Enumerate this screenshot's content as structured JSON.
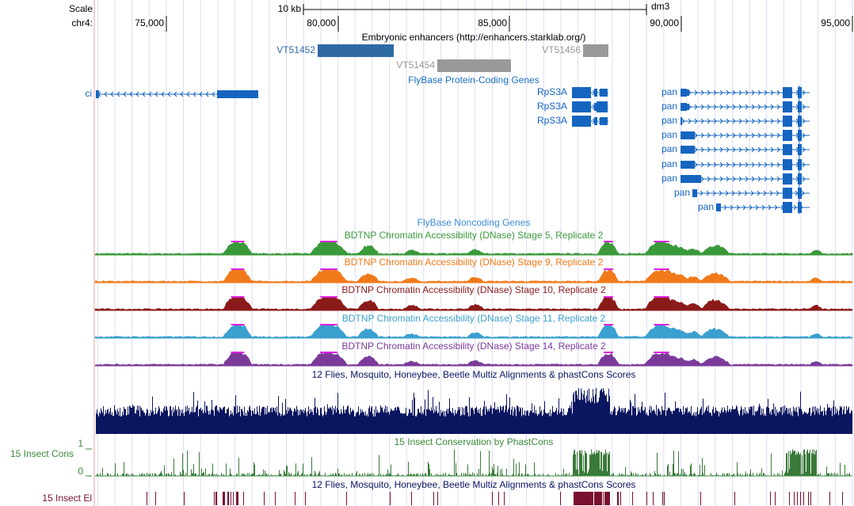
{
  "ruler": {
    "scale_label": "Scale",
    "chrom_label": "chr4:",
    "scale_bar_label": "10 kb",
    "assembly": "dm3",
    "ticks": [
      "75,000",
      "80,000",
      "85,000",
      "90,000",
      "95,000"
    ]
  },
  "enhancers": {
    "title": "Embryonic enhancers (http://enhancers.starklab.org/)",
    "features": [
      "VT51452",
      "VT51454",
      "VT51456"
    ]
  },
  "protein_coding": {
    "title": "FlyBase Protein-Coding Genes",
    "genes": [
      "ci",
      "RpS3A",
      "RpS3A",
      "RpS3A",
      "pan",
      "pan",
      "pan",
      "pan",
      "pan",
      "pan",
      "pan",
      "pan",
      "pan"
    ]
  },
  "noncoding": {
    "title": "FlyBase Noncoding Genes"
  },
  "dnase": [
    "BDTNP Chromatin Accessibility (DNase) Stage 5, Replicate 2",
    "BDTNP Chromatin Accessibility (DNase) Stage 9, Replicate 2",
    "BDTNP Chromatin Accessibility (DNase) Stage 10, Replicate 2",
    "BDTNP Chromatin Accessibility (DNase) Stage 11, Replicate 2",
    "BDTNP Chromatin Accessibility (DNase) Stage 14, Replicate 2"
  ],
  "multiz": {
    "title": "12 Flies, Mosquito, Honeybee, Beetle Multiz Alignments & phastCons Scores"
  },
  "phastcons": {
    "title": "15 Insect Conservation by PhastCons",
    "side_label": "15 Insect Cons",
    "axis_top": "1",
    "axis_bottom": "0"
  },
  "elements": {
    "title": "12 Flies, Mosquito, Honeybee, Beetle Multiz Alignments & phastCons Scores",
    "side_label": "15 Insect El"
  }
}
